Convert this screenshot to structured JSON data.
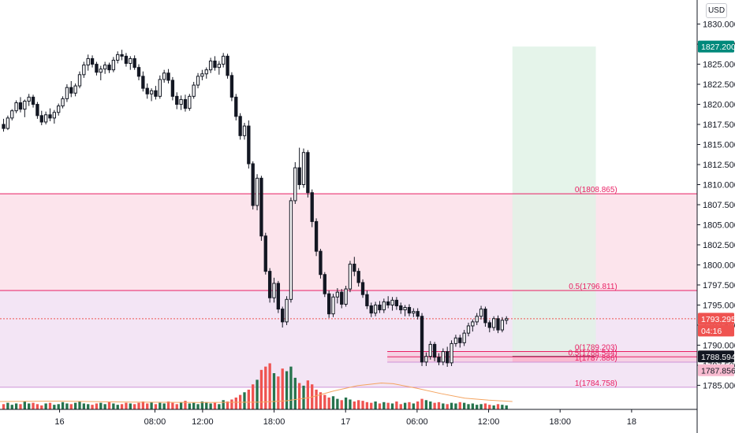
{
  "currency_button": "USD",
  "colors": {
    "up_candle": "#ffffff",
    "down_candle": "#131722",
    "volume_up": "#26734d",
    "volume_down": "#ef5350",
    "fib_line": "#e91e63",
    "fib_low_line": "#ce93d8",
    "premium_zone": "#fce4ec",
    "discount_zone": "#f3e5f5",
    "target_zone": "#e0f2e6",
    "stop_zone": "#f8bbd0",
    "ma_line": "#f4a460"
  },
  "chart_data": {
    "type": "candlestick",
    "symbol_currency": "USD",
    "ylim": [
      1782.0,
      1833.0
    ],
    "y_ticks": [
      "1785.000",
      "1787.500",
      "1790.000",
      "1792.500",
      "1795.000",
      "1797.500",
      "1800.000",
      "1802.500",
      "1805.000",
      "1807.500",
      "1810.000",
      "1812.500",
      "1815.000",
      "1817.500",
      "1820.000",
      "1822.500",
      "1825.000",
      "1827.500",
      "1830.000"
    ],
    "y_tick_values": [
      1785.0,
      1787.5,
      1790.0,
      1792.5,
      1795.0,
      1797.5,
      1800.0,
      1802.5,
      1805.0,
      1807.5,
      1810.0,
      1812.5,
      1815.0,
      1817.5,
      1820.0,
      1822.5,
      1825.0,
      1827.5,
      1830.0
    ],
    "x_ticks": [
      "16",
      "08:00",
      "12:00",
      "18:00",
      "17",
      "06:00",
      "12:00",
      "18:00",
      "18"
    ],
    "x_tick_hours": [
      0,
      8,
      12,
      18,
      24,
      30,
      36,
      42,
      48
    ],
    "x_axis_start_hour": -5.0,
    "x_axis_end_hour": 53.5,
    "last_candle_hour": 37.5,
    "ohlc": [
      [
        1817.5,
        1818.2,
        1816.6,
        1817.0
      ],
      [
        1817.0,
        1818.6,
        1816.8,
        1818.3
      ],
      [
        1818.3,
        1819.4,
        1818.0,
        1819.2
      ],
      [
        1819.2,
        1820.5,
        1818.9,
        1820.2
      ],
      [
        1820.2,
        1820.9,
        1819.0,
        1819.4
      ],
      [
        1819.4,
        1820.6,
        1818.4,
        1820.4
      ],
      [
        1820.4,
        1821.3,
        1819.8,
        1820.9
      ],
      [
        1820.9,
        1821.2,
        1819.6,
        1820.0
      ],
      [
        1820.0,
        1820.3,
        1818.2,
        1818.6
      ],
      [
        1818.6,
        1819.2,
        1817.4,
        1817.8
      ],
      [
        1817.8,
        1819.1,
        1817.5,
        1818.7
      ],
      [
        1818.7,
        1819.5,
        1817.9,
        1818.3
      ],
      [
        1818.3,
        1819.3,
        1817.6,
        1819.0
      ],
      [
        1819.0,
        1820.1,
        1818.6,
        1819.8
      ],
      [
        1819.8,
        1821.0,
        1819.5,
        1820.7
      ],
      [
        1820.7,
        1822.5,
        1820.3,
        1822.1
      ],
      [
        1822.1,
        1822.9,
        1820.9,
        1821.4
      ],
      [
        1821.4,
        1822.6,
        1821.0,
        1822.3
      ],
      [
        1822.3,
        1824.1,
        1822.0,
        1823.7
      ],
      [
        1823.7,
        1825.3,
        1823.3,
        1824.9
      ],
      [
        1824.9,
        1826.2,
        1824.2,
        1825.7
      ],
      [
        1825.7,
        1826.1,
        1824.6,
        1825.0
      ],
      [
        1825.0,
        1825.3,
        1823.6,
        1824.0
      ],
      [
        1824.0,
        1824.8,
        1823.0,
        1824.4
      ],
      [
        1824.4,
        1825.3,
        1823.8,
        1824.9
      ],
      [
        1824.9,
        1825.2,
        1823.9,
        1824.3
      ],
      [
        1824.3,
        1825.9,
        1824.0,
        1825.5
      ],
      [
        1825.5,
        1826.6,
        1825.1,
        1826.2
      ],
      [
        1826.2,
        1826.8,
        1825.5,
        1826.0
      ],
      [
        1826.0,
        1826.4,
        1824.7,
        1825.1
      ],
      [
        1825.1,
        1826.0,
        1824.3,
        1825.7
      ],
      [
        1825.7,
        1826.1,
        1824.3,
        1824.6
      ],
      [
        1824.6,
        1825.0,
        1823.0,
        1823.5
      ],
      [
        1823.5,
        1824.1,
        1821.6,
        1822.0
      ],
      [
        1822.0,
        1822.6,
        1820.7,
        1821.3
      ],
      [
        1821.3,
        1822.0,
        1820.4,
        1821.7
      ],
      [
        1821.7,
        1822.3,
        1820.6,
        1821.0
      ],
      [
        1821.0,
        1823.6,
        1820.7,
        1823.1
      ],
      [
        1823.1,
        1824.3,
        1822.7,
        1823.9
      ],
      [
        1823.9,
        1824.4,
        1822.6,
        1823.0
      ],
      [
        1823.0,
        1823.4,
        1820.5,
        1821.0
      ],
      [
        1821.0,
        1821.5,
        1819.4,
        1820.0
      ],
      [
        1820.0,
        1821.1,
        1819.3,
        1820.6
      ],
      [
        1820.6,
        1821.2,
        1819.1,
        1819.5
      ],
      [
        1819.5,
        1821.3,
        1819.2,
        1821.0
      ],
      [
        1821.0,
        1822.8,
        1820.7,
        1822.4
      ],
      [
        1822.4,
        1823.9,
        1822.0,
        1823.5
      ],
      [
        1823.5,
        1824.3,
        1823.0,
        1823.8
      ],
      [
        1823.8,
        1824.6,
        1823.2,
        1824.3
      ],
      [
        1824.3,
        1825.8,
        1823.9,
        1825.4
      ],
      [
        1825.4,
        1826.0,
        1824.2,
        1824.6
      ],
      [
        1824.6,
        1825.4,
        1823.7,
        1825.0
      ],
      [
        1825.0,
        1826.4,
        1824.6,
        1826.0
      ],
      [
        1826.0,
        1826.3,
        1823.2,
        1823.6
      ],
      [
        1823.6,
        1824.0,
        1820.4,
        1820.9
      ],
      [
        1820.9,
        1821.3,
        1818.0,
        1818.5
      ],
      [
        1818.5,
        1818.9,
        1815.6,
        1816.1
      ],
      [
        1816.1,
        1817.7,
        1815.6,
        1817.3
      ],
      [
        1817.3,
        1818.0,
        1812.0,
        1812.6
      ],
      [
        1812.6,
        1812.9,
        1806.9,
        1807.4
      ],
      [
        1807.4,
        1811.3,
        1806.8,
        1810.8
      ],
      [
        1810.8,
        1811.1,
        1803.0,
        1803.6
      ],
      [
        1803.6,
        1804.0,
        1798.8,
        1799.2
      ],
      [
        1799.2,
        1799.6,
        1795.3,
        1795.9
      ],
      [
        1795.9,
        1798.4,
        1795.3,
        1797.7
      ],
      [
        1797.7,
        1798.0,
        1794.0,
        1794.5
      ],
      [
        1794.5,
        1794.8,
        1792.2,
        1792.9
      ],
      [
        1792.9,
        1796.1,
        1792.5,
        1795.7
      ],
      [
        1795.7,
        1808.4,
        1795.3,
        1808.0
      ],
      [
        1808.0,
        1812.8,
        1807.6,
        1812.1
      ],
      [
        1812.1,
        1814.6,
        1809.4,
        1810.0
      ],
      [
        1810.0,
        1814.5,
        1809.6,
        1814.0
      ],
      [
        1814.0,
        1814.3,
        1808.4,
        1809.0
      ],
      [
        1809.0,
        1809.4,
        1804.7,
        1805.4
      ],
      [
        1805.4,
        1805.8,
        1801.1,
        1801.7
      ],
      [
        1801.7,
        1802.0,
        1798.3,
        1798.8
      ],
      [
        1798.8,
        1799.1,
        1796.0,
        1796.4
      ],
      [
        1796.4,
        1796.8,
        1793.4,
        1793.9
      ],
      [
        1793.9,
        1796.4,
        1793.5,
        1796.0
      ],
      [
        1796.0,
        1797.1,
        1795.2,
        1796.6
      ],
      [
        1796.6,
        1797.0,
        1794.6,
        1795.1
      ],
      [
        1795.1,
        1797.4,
        1794.8,
        1797.0
      ],
      [
        1797.0,
        1800.5,
        1796.6,
        1800.1
      ],
      [
        1800.1,
        1801.0,
        1798.6,
        1799.2
      ],
      [
        1799.2,
        1799.6,
        1797.3,
        1797.8
      ],
      [
        1797.8,
        1798.2,
        1795.9,
        1796.3
      ],
      [
        1796.3,
        1796.8,
        1794.5,
        1794.9
      ],
      [
        1794.9,
        1795.3,
        1793.5,
        1794.0
      ],
      [
        1794.0,
        1795.4,
        1793.6,
        1795.0
      ],
      [
        1795.0,
        1795.5,
        1794.0,
        1794.4
      ],
      [
        1794.4,
        1795.8,
        1794.0,
        1795.4
      ],
      [
        1795.4,
        1796.1,
        1794.6,
        1795.0
      ],
      [
        1795.0,
        1796.0,
        1794.3,
        1795.6
      ],
      [
        1795.6,
        1796.0,
        1794.4,
        1794.9
      ],
      [
        1794.9,
        1795.3,
        1793.9,
        1794.4
      ],
      [
        1794.4,
        1795.0,
        1793.6,
        1794.7
      ],
      [
        1794.7,
        1795.1,
        1793.6,
        1794.0
      ],
      [
        1794.0,
        1794.6,
        1793.5,
        1794.2
      ],
      [
        1794.2,
        1794.6,
        1793.2,
        1793.6
      ],
      [
        1793.6,
        1794.0,
        1787.4,
        1787.9
      ],
      [
        1787.9,
        1789.1,
        1787.4,
        1788.6
      ],
      [
        1788.6,
        1790.5,
        1788.2,
        1790.1
      ],
      [
        1790.1,
        1790.4,
        1788.0,
        1788.5
      ],
      [
        1788.5,
        1789.0,
        1787.5,
        1787.9
      ],
      [
        1787.9,
        1789.6,
        1787.5,
        1789.2
      ],
      [
        1789.2,
        1789.8,
        1787.3,
        1787.8
      ],
      [
        1787.8,
        1790.6,
        1787.4,
        1790.2
      ],
      [
        1790.2,
        1791.3,
        1789.8,
        1790.9
      ],
      [
        1790.9,
        1791.3,
        1789.7,
        1790.3
      ],
      [
        1790.3,
        1791.9,
        1789.9,
        1791.5
      ],
      [
        1791.5,
        1792.8,
        1791.1,
        1792.4
      ],
      [
        1792.4,
        1793.2,
        1791.7,
        1792.9
      ],
      [
        1792.9,
        1794.0,
        1792.5,
        1793.6
      ],
      [
        1793.6,
        1794.9,
        1793.2,
        1794.5
      ],
      [
        1794.5,
        1794.8,
        1792.3,
        1792.8
      ],
      [
        1792.8,
        1793.1,
        1791.6,
        1792.2
      ],
      [
        1792.2,
        1793.6,
        1791.8,
        1793.3
      ],
      [
        1793.3,
        1793.7,
        1791.5,
        1791.9
      ],
      [
        1791.9,
        1793.5,
        1791.6,
        1793.1
      ],
      [
        1793.1,
        1793.6,
        1792.6,
        1793.3
      ]
    ],
    "volume_max": 100,
    "volume": [
      8,
      10,
      7,
      9,
      8,
      12,
      9,
      10,
      8,
      6,
      9,
      10,
      7,
      8,
      11,
      9,
      8,
      10,
      12,
      9,
      8,
      7,
      9,
      10,
      8,
      11,
      9,
      7,
      8,
      10,
      9,
      8,
      10,
      12,
      9,
      11,
      8,
      10,
      9,
      12,
      10,
      8,
      11,
      13,
      9,
      10,
      8,
      12,
      11,
      9,
      10,
      8,
      14,
      12,
      15,
      18,
      22,
      26,
      30,
      38,
      45,
      60,
      65,
      70,
      55,
      50,
      62,
      58,
      65,
      48,
      40,
      36,
      44,
      38,
      30,
      26,
      22,
      18,
      20,
      16,
      14,
      18,
      15,
      12,
      14,
      13,
      11,
      10,
      12,
      9,
      11,
      10,
      9,
      12,
      8,
      10,
      11,
      9,
      12,
      16,
      14,
      12,
      10,
      11,
      9,
      8,
      10,
      9,
      11,
      10,
      8,
      9,
      7,
      8,
      9,
      7,
      6,
      8,
      7,
      6
    ],
    "moving_average": [
      [
        -5,
        12
      ],
      [
        0,
        12.5
      ],
      [
        6,
        11
      ],
      [
        12,
        10.5
      ],
      [
        17,
        11
      ],
      [
        19,
        13
      ],
      [
        21,
        18
      ],
      [
        23,
        28
      ],
      [
        25,
        36
      ],
      [
        27,
        40
      ],
      [
        28,
        39
      ],
      [
        30,
        32
      ],
      [
        32,
        24
      ],
      [
        34,
        17
      ],
      [
        36,
        14
      ],
      [
        38,
        12
      ]
    ],
    "fibonacci_levels": [
      {
        "label": "0(1808.865)",
        "value": 1808.865
      },
      {
        "label": "0.5(1796.811)",
        "value": 1796.811
      },
      {
        "label": "1(1784.758)",
        "value": 1784.758
      },
      {
        "label": "0(1789.203)",
        "value": 1789.203
      },
      {
        "label": "0.5(1788.544)",
        "value": 1788.544
      },
      {
        "label": "1(1787.886)",
        "value": 1787.886
      }
    ],
    "position_tool": {
      "target": 1827.2,
      "entry": 1788.594,
      "stop": 1787.856,
      "start_hour": 38.0,
      "end_hour": 45.0
    },
    "price_badges": [
      {
        "label": "1827.200",
        "value": 1827.2,
        "bg": "#00897b",
        "fg": "#ffffff"
      },
      {
        "label": "1793.295",
        "value": 1793.295,
        "bg": "#ef5350",
        "fg": "#ffffff"
      },
      {
        "label": "04:16",
        "value": 1791.9,
        "bg": "#ef5350",
        "fg": "#ffffff"
      },
      {
        "label": "1788.594",
        "value": 1788.594,
        "bg": "#131722",
        "fg": "#ffffff"
      },
      {
        "label": "1787.856",
        "value": 1787.856,
        "bg": "#f8bbd0",
        "fg": "#131722"
      }
    ]
  }
}
